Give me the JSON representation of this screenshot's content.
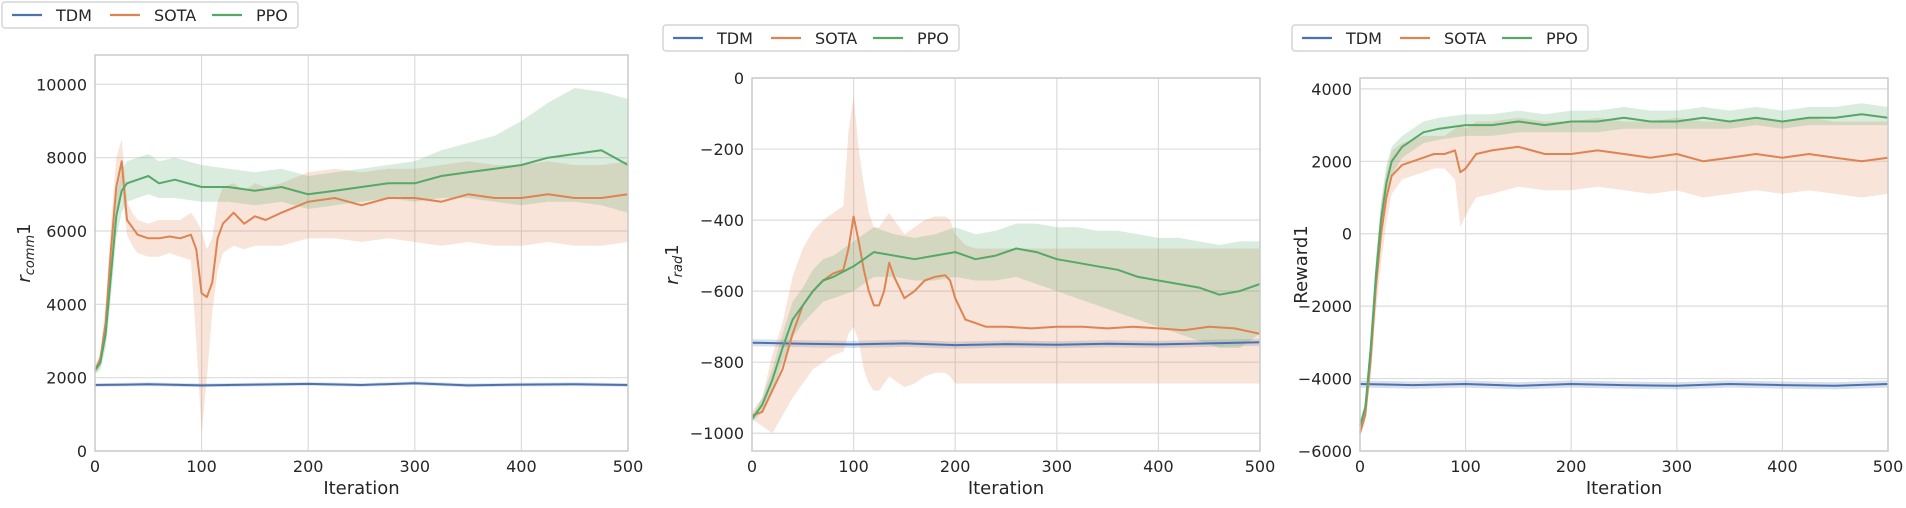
{
  "chart_data": [
    {
      "type": "line",
      "title": "",
      "xlabel": "Iteration",
      "ylabel": "r_comm1",
      "ylabel_main": "r",
      "ylabel_sub": "comm",
      "ylabel_suffix": "1",
      "xlim": [
        0,
        500
      ],
      "ylim": [
        0,
        10800
      ],
      "xticks": [
        0,
        100,
        200,
        300,
        400,
        500
      ],
      "yticks": [
        0,
        2000,
        4000,
        6000,
        8000,
        10000
      ],
      "legend": "outside-top-left",
      "grid": true,
      "series": [
        {
          "name": "TDM",
          "color": "#4c72b0",
          "x": [
            0,
            50,
            100,
            150,
            200,
            250,
            300,
            350,
            400,
            450,
            500
          ],
          "values": [
            1800,
            1820,
            1790,
            1810,
            1830,
            1800,
            1850,
            1790,
            1810,
            1820,
            1800
          ],
          "lower": [
            1750,
            1770,
            1740,
            1760,
            1780,
            1750,
            1800,
            1740,
            1760,
            1770,
            1750
          ],
          "upper": [
            1850,
            1870,
            1840,
            1860,
            1880,
            1850,
            1900,
            1840,
            1860,
            1870,
            1850
          ]
        },
        {
          "name": "SOTA",
          "color": "#dd8452",
          "x": [
            0,
            5,
            10,
            15,
            20,
            25,
            30,
            35,
            40,
            50,
            60,
            70,
            80,
            90,
            95,
            100,
            105,
            110,
            115,
            120,
            130,
            140,
            150,
            160,
            175,
            200,
            225,
            250,
            275,
            300,
            325,
            350,
            375,
            400,
            425,
            450,
            475,
            500
          ],
          "values": [
            2200,
            2500,
            3500,
            5500,
            7200,
            7900,
            6300,
            6100,
            5900,
            5800,
            5800,
            5850,
            5800,
            5900,
            5500,
            4300,
            4200,
            4600,
            5800,
            6200,
            6500,
            6200,
            6400,
            6300,
            6500,
            6800,
            6900,
            6700,
            6900,
            6900,
            6800,
            7000,
            6900,
            6900,
            7000,
            6900,
            6900,
            7000
          ],
          "lower": [
            2100,
            2300,
            3000,
            4800,
            6500,
            7200,
            5900,
            5600,
            5400,
            5300,
            5300,
            5400,
            5300,
            5200,
            3000,
            500,
            2000,
            3800,
            4900,
            5400,
            5600,
            5500,
            5600,
            5600,
            5600,
            5800,
            5800,
            5700,
            5800,
            5700,
            5600,
            5700,
            5600,
            5600,
            5700,
            5600,
            5600,
            5700
          ],
          "upper": [
            2300,
            2700,
            4000,
            6200,
            8000,
            8500,
            6800,
            6500,
            6300,
            6200,
            6300,
            6300,
            6300,
            6500,
            6300,
            6000,
            5500,
            5800,
            6800,
            7200,
            7300,
            7100,
            7300,
            7200,
            7300,
            7600,
            7700,
            7600,
            7700,
            7700,
            7800,
            7900,
            7800,
            7800,
            7900,
            7800,
            7800,
            7900
          ]
        },
        {
          "name": "PPO",
          "color": "#55a868",
          "x": [
            0,
            5,
            10,
            15,
            20,
            25,
            30,
            40,
            50,
            60,
            75,
            100,
            125,
            150,
            175,
            200,
            225,
            250,
            275,
            300,
            325,
            350,
            375,
            400,
            425,
            450,
            475,
            500
          ],
          "values": [
            2200,
            2400,
            3200,
            4800,
            6400,
            7100,
            7300,
            7400,
            7500,
            7300,
            7400,
            7200,
            7200,
            7100,
            7200,
            7000,
            7100,
            7200,
            7300,
            7300,
            7500,
            7600,
            7700,
            7800,
            8000,
            8100,
            8200,
            7800
          ],
          "lower": [
            2100,
            2200,
            2800,
            4200,
            5800,
            6500,
            6800,
            6900,
            7000,
            6900,
            6900,
            6800,
            6800,
            6700,
            6800,
            6600,
            6700,
            6800,
            6900,
            6800,
            6900,
            6900,
            6800,
            6700,
            6800,
            6800,
            6700,
            6500
          ],
          "upper": [
            2300,
            2600,
            3600,
            5400,
            7000,
            7700,
            7900,
            8000,
            8100,
            7900,
            8000,
            7800,
            7700,
            7600,
            7700,
            7500,
            7600,
            7700,
            7800,
            7900,
            8200,
            8400,
            8600,
            9000,
            9500,
            9900,
            9800,
            9600
          ]
        }
      ]
    },
    {
      "type": "line",
      "title": "",
      "xlabel": "Iteration",
      "ylabel": "r_rad1",
      "ylabel_main": "r",
      "ylabel_sub": "rad",
      "ylabel_suffix": "1",
      "xlim": [
        0,
        500
      ],
      "ylim": [
        -1050,
        0
      ],
      "xticks": [
        0,
        100,
        200,
        300,
        400,
        500
      ],
      "yticks": [
        -1000,
        -800,
        -600,
        -400,
        -200,
        0
      ],
      "legend": "outside-top-left",
      "grid": true,
      "series": [
        {
          "name": "TDM",
          "color": "#4c72b0",
          "x": [
            0,
            50,
            100,
            150,
            200,
            250,
            300,
            350,
            400,
            450,
            500
          ],
          "values": [
            -745,
            -748,
            -750,
            -747,
            -752,
            -749,
            -751,
            -748,
            -750,
            -747,
            -744
          ],
          "lower": [
            -755,
            -758,
            -760,
            -757,
            -762,
            -759,
            -761,
            -758,
            -760,
            -757,
            -754
          ],
          "upper": [
            -735,
            -738,
            -740,
            -737,
            -742,
            -739,
            -741,
            -738,
            -740,
            -737,
            -734
          ]
        },
        {
          "name": "SOTA",
          "color": "#dd8452",
          "x": [
            0,
            10,
            20,
            30,
            40,
            50,
            60,
            70,
            80,
            90,
            95,
            100,
            105,
            110,
            115,
            120,
            125,
            130,
            135,
            140,
            150,
            160,
            170,
            180,
            190,
            195,
            200,
            210,
            220,
            230,
            250,
            275,
            300,
            325,
            350,
            375,
            400,
            425,
            450,
            475,
            500
          ],
          "values": [
            -950,
            -940,
            -880,
            -820,
            -720,
            -640,
            -600,
            -570,
            -550,
            -540,
            -480,
            -390,
            -460,
            -540,
            -600,
            -640,
            -640,
            -600,
            -520,
            -560,
            -620,
            -600,
            -570,
            -560,
            -555,
            -570,
            -620,
            -680,
            -690,
            -700,
            -700,
            -705,
            -700,
            -700,
            -705,
            -700,
            -705,
            -710,
            -700,
            -705,
            -720
          ],
          "lower": [
            -960,
            -980,
            -1000,
            -950,
            -900,
            -860,
            -820,
            -800,
            -780,
            -770,
            -720,
            -700,
            -740,
            -820,
            -860,
            -880,
            -880,
            -860,
            -840,
            -850,
            -870,
            -860,
            -840,
            -830,
            -830,
            -840,
            -860,
            -860,
            -860,
            -860,
            -860,
            -860,
            -860,
            -860,
            -860,
            -860,
            -860,
            -860,
            -860,
            -860,
            -860
          ],
          "upper": [
            -940,
            -900,
            -780,
            -690,
            -560,
            -480,
            -430,
            -400,
            -380,
            -360,
            -150,
            -50,
            -200,
            -300,
            -380,
            -420,
            -420,
            -400,
            -380,
            -400,
            -440,
            -420,
            -400,
            -390,
            -390,
            -400,
            -440,
            -470,
            -480,
            -480,
            -480,
            -480,
            -480,
            -480,
            -480,
            -480,
            -480,
            -480,
            -480,
            -480,
            -480
          ]
        },
        {
          "name": "PPO",
          "color": "#55a868",
          "x": [
            0,
            10,
            20,
            30,
            40,
            50,
            60,
            70,
            80,
            100,
            120,
            140,
            160,
            180,
            200,
            220,
            240,
            260,
            280,
            300,
            320,
            340,
            360,
            380,
            400,
            420,
            440,
            460,
            480,
            500
          ],
          "values": [
            -960,
            -920,
            -850,
            -760,
            -680,
            -640,
            -600,
            -570,
            -560,
            -530,
            -490,
            -500,
            -510,
            -500,
            -490,
            -510,
            -500,
            -480,
            -490,
            -510,
            -520,
            -530,
            -540,
            -560,
            -570,
            -580,
            -590,
            -610,
            -600,
            -580
          ],
          "lower": [
            -970,
            -940,
            -880,
            -800,
            -730,
            -690,
            -660,
            -630,
            -620,
            -600,
            -560,
            -560,
            -570,
            -570,
            -560,
            -570,
            -570,
            -560,
            -580,
            -600,
            -620,
            -640,
            -660,
            -680,
            -700,
            -720,
            -740,
            -760,
            -760,
            -720
          ],
          "upper": [
            -950,
            -900,
            -820,
            -720,
            -630,
            -590,
            -540,
            -510,
            -500,
            -460,
            -420,
            -440,
            -450,
            -440,
            -420,
            -440,
            -430,
            -410,
            -410,
            -420,
            -420,
            -430,
            -430,
            -440,
            -450,
            -450,
            -460,
            -470,
            -460,
            -460
          ]
        }
      ]
    },
    {
      "type": "line",
      "title": "",
      "xlabel": "Iteration",
      "ylabel": "Reward1",
      "xlim": [
        0,
        500
      ],
      "ylim": [
        -6000,
        4300
      ],
      "xticks": [
        0,
        100,
        200,
        300,
        400,
        500
      ],
      "yticks": [
        -6000,
        -4000,
        -2000,
        0,
        2000,
        4000
      ],
      "legend": "outside-top-left",
      "grid": true,
      "series": [
        {
          "name": "TDM",
          "color": "#4c72b0",
          "x": [
            0,
            50,
            100,
            150,
            200,
            250,
            300,
            350,
            400,
            450,
            500
          ],
          "values": [
            -4150,
            -4180,
            -4150,
            -4200,
            -4150,
            -4180,
            -4200,
            -4150,
            -4180,
            -4200,
            -4150
          ],
          "lower": [
            -4250,
            -4280,
            -4250,
            -4300,
            -4250,
            -4280,
            -4300,
            -4250,
            -4280,
            -4300,
            -4250
          ],
          "upper": [
            -4050,
            -4080,
            -4050,
            -4100,
            -4050,
            -4080,
            -4100,
            -4050,
            -4080,
            -4100,
            -4050
          ]
        },
        {
          "name": "SOTA",
          "color": "#dd8452",
          "x": [
            0,
            5,
            10,
            15,
            20,
            25,
            30,
            40,
            50,
            60,
            70,
            80,
            90,
            95,
            100,
            110,
            125,
            150,
            175,
            200,
            225,
            250,
            275,
            300,
            325,
            350,
            375,
            400,
            425,
            450,
            475,
            500
          ],
          "values": [
            -5500,
            -5000,
            -3500,
            -1500,
            0,
            1000,
            1600,
            1900,
            2000,
            2100,
            2200,
            2200,
            2300,
            1700,
            1800,
            2200,
            2300,
            2400,
            2200,
            2200,
            2300,
            2200,
            2100,
            2200,
            2000,
            2100,
            2200,
            2100,
            2200,
            2100,
            2000,
            2100
          ],
          "lower": [
            -5600,
            -5200,
            -4000,
            -2200,
            -800,
            300,
            1100,
            1500,
            1600,
            1700,
            1800,
            1800,
            1500,
            200,
            500,
            1000,
            1100,
            1300,
            1200,
            1200,
            1300,
            1200,
            1100,
            1200,
            1000,
            1100,
            1200,
            1100,
            1200,
            1100,
            1000,
            1100
          ],
          "upper": [
            -5400,
            -4800,
            -3000,
            -800,
            800,
            1700,
            2300,
            2500,
            2600,
            2700,
            2700,
            2700,
            2900,
            3000,
            2900,
            3100,
            3100,
            3200,
            3100,
            3100,
            3200,
            3100,
            3100,
            3200,
            3100,
            3100,
            3200,
            3100,
            3200,
            3100,
            3100,
            3100
          ]
        },
        {
          "name": "PPO",
          "color": "#55a868",
          "x": [
            0,
            5,
            10,
            15,
            20,
            25,
            30,
            40,
            50,
            60,
            75,
            100,
            125,
            150,
            175,
            200,
            225,
            250,
            275,
            300,
            325,
            350,
            375,
            400,
            425,
            450,
            475,
            500
          ],
          "values": [
            -5300,
            -4800,
            -3200,
            -1200,
            400,
            1400,
            2000,
            2400,
            2600,
            2800,
            2900,
            3000,
            3000,
            3100,
            3000,
            3100,
            3100,
            3200,
            3100,
            3100,
            3200,
            3100,
            3200,
            3100,
            3200,
            3200,
            3300,
            3200
          ],
          "lower": [
            -5400,
            -5000,
            -3600,
            -1700,
            -100,
            900,
            1600,
            2100,
            2300,
            2500,
            2600,
            2700,
            2700,
            2800,
            2800,
            2800,
            2800,
            2900,
            2900,
            2900,
            2900,
            2900,
            3000,
            2900,
            3000,
            3000,
            3000,
            3000
          ],
          "upper": [
            -5200,
            -4600,
            -2800,
            -700,
            900,
            1900,
            2400,
            2700,
            2900,
            3100,
            3200,
            3300,
            3300,
            3400,
            3300,
            3400,
            3400,
            3500,
            3400,
            3400,
            3500,
            3400,
            3500,
            3400,
            3500,
            3500,
            3600,
            3500
          ]
        }
      ]
    }
  ]
}
